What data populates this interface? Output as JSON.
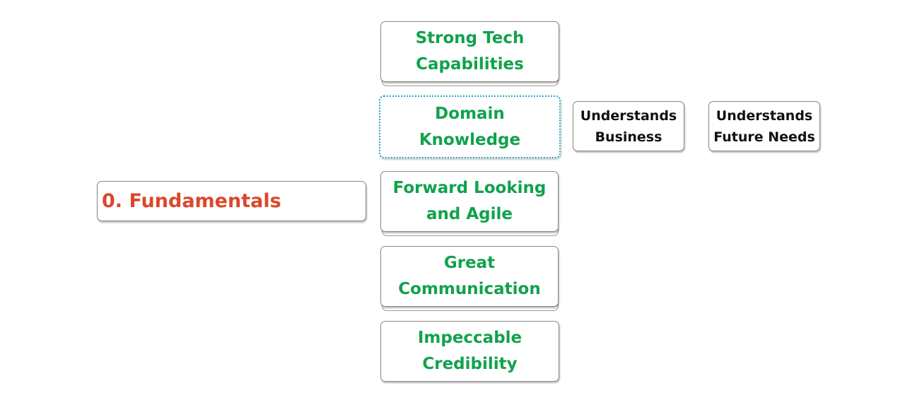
{
  "root": {
    "label": "0. Fundamentals"
  },
  "branches": [
    {
      "label": "Strong Tech\nCapabilities"
    },
    {
      "label": "Domain\nKnowledge"
    },
    {
      "label": "Forward Looking\nand Agile"
    },
    {
      "label": "Great\nCommunication"
    },
    {
      "label": "Impeccable\nCredibility"
    }
  ],
  "subtopics": [
    {
      "label": "Understands\nBusiness"
    },
    {
      "label": "Understands\nFuture Needs"
    }
  ],
  "colors": {
    "root_text": "#d9482b",
    "branch_text": "#11a24b",
    "subtopic_text": "#111111",
    "selection_outline": "#2aa0c8"
  }
}
